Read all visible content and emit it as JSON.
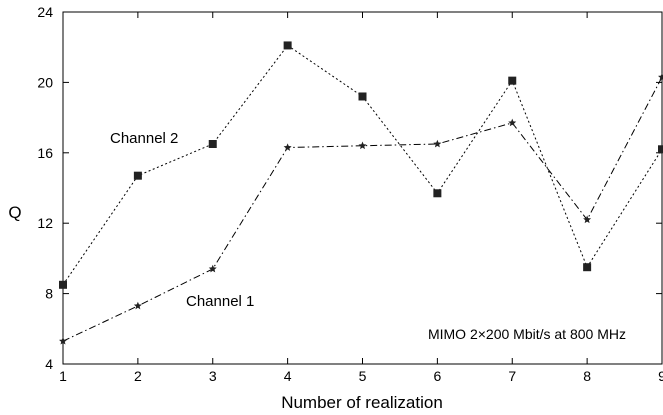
{
  "chart_data": {
    "type": "line",
    "title": "",
    "xlabel": "Number of realization",
    "ylabel": "Q",
    "xlim": [
      1,
      9
    ],
    "ylim": [
      4,
      24
    ],
    "x_ticks": [
      "1",
      "2",
      "3",
      "4",
      "5",
      "6",
      "7",
      "8",
      "9"
    ],
    "y_ticks": [
      "4",
      "8",
      "12",
      "16",
      "20",
      "24"
    ],
    "x": [
      1,
      2,
      3,
      4,
      5,
      6,
      7,
      8,
      9
    ],
    "series": [
      {
        "name": "Channel 2",
        "marker": "square",
        "line_style": "dotted",
        "values": [
          8.5,
          14.7,
          16.5,
          22.1,
          19.2,
          13.7,
          20.1,
          9.5,
          16.2
        ]
      },
      {
        "name": "Channel 1",
        "marker": "star",
        "line_style": "dash-dot",
        "values": [
          5.3,
          7.3,
          9.4,
          16.3,
          16.4,
          16.5,
          17.7,
          12.2,
          20.3
        ]
      }
    ],
    "annotation": "MIMO 2×200 Mbit/s at 800 MHz",
    "grid": false,
    "legend": "inline labels"
  }
}
